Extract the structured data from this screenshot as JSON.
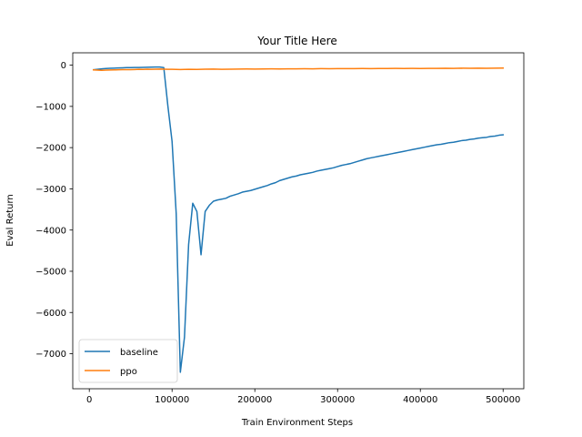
{
  "chart_data": {
    "type": "line",
    "title": "Your Title Here",
    "xlabel": "Train Environment Steps",
    "ylabel": "Eval Return",
    "xlim": [
      -20000,
      525000
    ],
    "ylim": [
      -7850,
      300
    ],
    "xticks": [
      0,
      100000,
      200000,
      300000,
      400000,
      500000
    ],
    "xtick_labels": [
      "0",
      "100000",
      "200000",
      "300000",
      "400000",
      "500000"
    ],
    "yticks": [
      0,
      -1000,
      -2000,
      -3000,
      -4000,
      -5000,
      -6000,
      -7000
    ],
    "ytick_labels": [
      "0",
      "−1000",
      "−2000",
      "−3000",
      "−4000",
      "−5000",
      "−6000",
      "−7000"
    ],
    "grid": false,
    "legend_position": "lower-left",
    "series": [
      {
        "name": "baseline",
        "color": "#1f77b4",
        "x": [
          5000,
          10000,
          15000,
          20000,
          25000,
          30000,
          35000,
          40000,
          45000,
          50000,
          55000,
          60000,
          65000,
          70000,
          75000,
          80000,
          85000,
          90000,
          95000,
          100000,
          105000,
          110000,
          115000,
          120000,
          125000,
          130000,
          135000,
          140000,
          145000,
          150000,
          155000,
          160000,
          165000,
          170000,
          175000,
          180000,
          185000,
          190000,
          195000,
          200000,
          205000,
          210000,
          215000,
          220000,
          225000,
          230000,
          235000,
          240000,
          245000,
          250000,
          255000,
          260000,
          265000,
          270000,
          275000,
          280000,
          285000,
          290000,
          295000,
          300000,
          305000,
          310000,
          315000,
          320000,
          325000,
          330000,
          335000,
          340000,
          345000,
          350000,
          355000,
          360000,
          365000,
          370000,
          375000,
          380000,
          385000,
          390000,
          395000,
          400000,
          405000,
          410000,
          415000,
          420000,
          425000,
          430000,
          435000,
          440000,
          445000,
          450000,
          455000,
          460000,
          465000,
          470000,
          475000,
          480000,
          485000,
          490000,
          495000,
          500000
        ],
        "y": [
          -110,
          -100,
          -90,
          -80,
          -75,
          -72,
          -68,
          -65,
          -60,
          -58,
          -55,
          -55,
          -52,
          -50,
          -48,
          -45,
          -45,
          -60,
          -1000,
          -1850,
          -3600,
          -7450,
          -6600,
          -4350,
          -3350,
          -3550,
          -4600,
          -3550,
          -3400,
          -3300,
          -3270,
          -3250,
          -3230,
          -3180,
          -3150,
          -3120,
          -3080,
          -3060,
          -3040,
          -3010,
          -2980,
          -2950,
          -2920,
          -2880,
          -2850,
          -2800,
          -2770,
          -2740,
          -2710,
          -2690,
          -2660,
          -2640,
          -2620,
          -2600,
          -2570,
          -2550,
          -2530,
          -2510,
          -2490,
          -2460,
          -2430,
          -2410,
          -2390,
          -2360,
          -2330,
          -2300,
          -2270,
          -2250,
          -2230,
          -2210,
          -2190,
          -2170,
          -2150,
          -2130,
          -2110,
          -2090,
          -2070,
          -2050,
          -2030,
          -2010,
          -1990,
          -1970,
          -1950,
          -1930,
          -1920,
          -1900,
          -1880,
          -1870,
          -1850,
          -1830,
          -1820,
          -1800,
          -1790,
          -1770,
          -1760,
          -1750,
          -1730,
          -1720,
          -1700,
          -1690
        ]
      },
      {
        "name": "ppo",
        "color": "#ff7f0e",
        "x": [
          5000,
          10000,
          15000,
          20000,
          25000,
          30000,
          35000,
          40000,
          45000,
          50000,
          55000,
          60000,
          65000,
          70000,
          75000,
          80000,
          85000,
          90000,
          95000,
          100000,
          110000,
          120000,
          130000,
          140000,
          150000,
          160000,
          170000,
          180000,
          190000,
          200000,
          210000,
          220000,
          230000,
          240000,
          250000,
          260000,
          270000,
          280000,
          290000,
          300000,
          310000,
          320000,
          330000,
          340000,
          350000,
          360000,
          370000,
          380000,
          390000,
          400000,
          410000,
          420000,
          430000,
          440000,
          450000,
          460000,
          470000,
          480000,
          490000,
          500000
        ],
        "y": [
          -115,
          -120,
          -125,
          -120,
          -118,
          -115,
          -112,
          -110,
          -108,
          -110,
          -105,
          -100,
          -102,
          -98,
          -100,
          -97,
          -95,
          -98,
          -100,
          -100,
          -105,
          -100,
          -102,
          -98,
          -95,
          -100,
          -97,
          -95,
          -93,
          -95,
          -92,
          -90,
          -92,
          -88,
          -90,
          -87,
          -88,
          -85,
          -86,
          -84,
          -85,
          -83,
          -82,
          -84,
          -80,
          -82,
          -79,
          -80,
          -78,
          -80,
          -77,
          -78,
          -75,
          -77,
          -74,
          -76,
          -73,
          -75,
          -72,
          -70
        ]
      }
    ]
  }
}
